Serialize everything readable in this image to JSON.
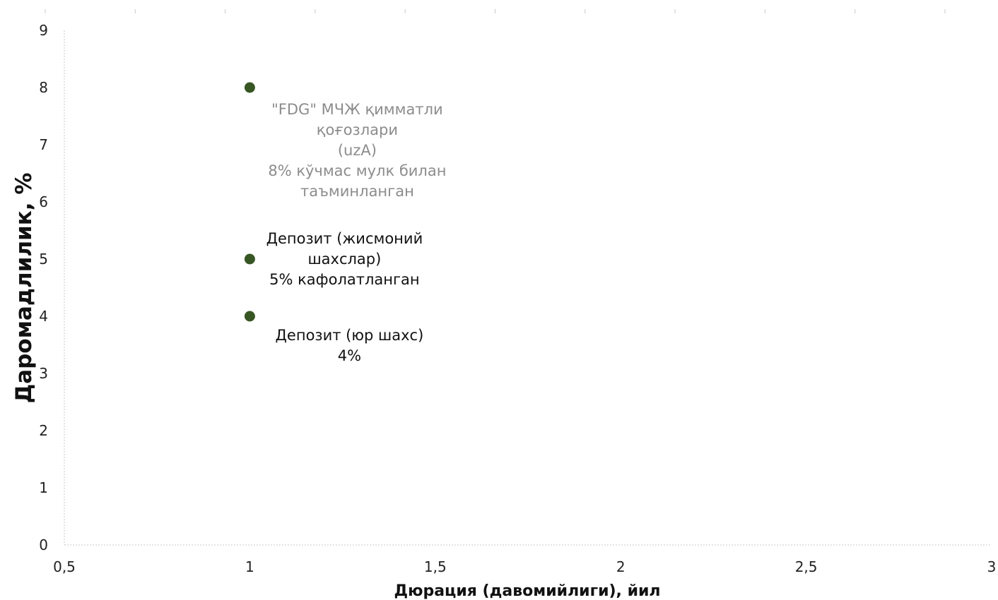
{
  "chart_data": {
    "type": "scatter",
    "title": "",
    "xlabel": "Дюрация (давомийлиги), йил",
    "ylabel": "Даромадлилик, %",
    "xlim": [
      0.5,
      3
    ],
    "ylim": [
      0,
      9
    ],
    "x_ticks": [
      "0,5",
      "1",
      "1,5",
      "2",
      "2,5",
      "3"
    ],
    "y_ticks": [
      "0",
      "1",
      "2",
      "3",
      "4",
      "5",
      "6",
      "7",
      "8",
      "9"
    ],
    "grid": false,
    "legend": "none",
    "point_color": "#375623",
    "points": [
      {
        "x": 1,
        "y": 8,
        "label": [
          "\"FDG\" МЧЖ қимматли",
          "қоғозлари",
          "(uzA)",
          "8% кўчмас мулк билан",
          "таъминланган"
        ],
        "label_color": "#8c8c8c"
      },
      {
        "x": 1,
        "y": 5,
        "label": [
          "Депозит (жисмоний",
          "шахслар)",
          "5% кафолатланган"
        ],
        "label_color": "#111111"
      },
      {
        "x": 1,
        "y": 4,
        "label": [
          "Депозит (юр шахс)",
          "4%"
        ],
        "label_color": "#111111"
      }
    ]
  }
}
